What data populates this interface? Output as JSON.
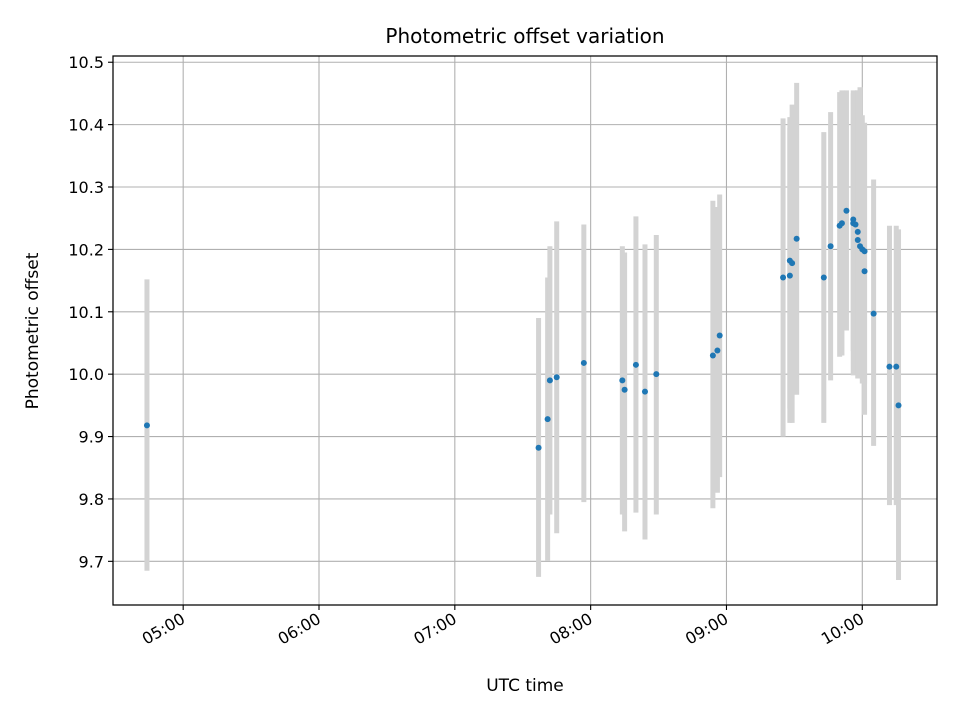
{
  "chart_data": {
    "type": "scatter",
    "title": "Photometric offset variation",
    "xlabel": "UTC time",
    "ylabel": "Photometric offset",
    "x_unit": "UTC time (HH:MM)",
    "x_ticks": [
      "05:00",
      "06:00",
      "07:00",
      "08:00",
      "09:00",
      "10:00"
    ],
    "y_ticks": [
      9.7,
      9.8,
      9.9,
      10.0,
      10.1,
      10.2,
      10.3,
      10.4,
      10.5
    ],
    "xlim": [
      "04:29",
      "10:33"
    ],
    "ylim": [
      9.63,
      10.51
    ],
    "grid": true,
    "colors": {
      "point": "#1f77b4",
      "errorbar": "#d3d3d3",
      "grid": "#b0b0b0"
    },
    "points": [
      {
        "x": "04:44",
        "y": 9.918,
        "ylo": 9.685,
        "yhi": 10.152
      },
      {
        "x": "07:37",
        "y": 9.882,
        "ylo": 9.675,
        "yhi": 10.09
      },
      {
        "x": "07:41",
        "y": 9.928,
        "ylo": 9.701,
        "yhi": 10.155
      },
      {
        "x": "07:42",
        "y": 9.99,
        "ylo": 9.775,
        "yhi": 10.205
      },
      {
        "x": "07:45",
        "y": 9.995,
        "ylo": 9.745,
        "yhi": 10.245
      },
      {
        "x": "07:57",
        "y": 10.018,
        "ylo": 9.795,
        "yhi": 10.24
      },
      {
        "x": "08:14",
        "y": 9.99,
        "ylo": 9.775,
        "yhi": 10.205
      },
      {
        "x": "08:15",
        "y": 9.975,
        "ylo": 9.748,
        "yhi": 10.195
      },
      {
        "x": "08:20",
        "y": 10.015,
        "ylo": 9.778,
        "yhi": 10.253
      },
      {
        "x": "08:24",
        "y": 9.972,
        "ylo": 9.735,
        "yhi": 10.208
      },
      {
        "x": "08:29",
        "y": 10.0,
        "ylo": 9.775,
        "yhi": 10.223
      },
      {
        "x": "08:54",
        "y": 10.03,
        "ylo": 9.785,
        "yhi": 10.278
      },
      {
        "x": "08:56",
        "y": 10.038,
        "ylo": 9.81,
        "yhi": 10.268
      },
      {
        "x": "08:57",
        "y": 10.062,
        "ylo": 9.835,
        "yhi": 10.288
      },
      {
        "x": "09:25",
        "y": 10.155,
        "ylo": 9.9,
        "yhi": 10.41
      },
      {
        "x": "09:28",
        "y": 10.182,
        "ylo": 9.945,
        "yhi": 10.412
      },
      {
        "x": "09:28",
        "y": 10.158,
        "ylo": 9.922,
        "yhi": 10.395
      },
      {
        "x": "09:29",
        "y": 10.178,
        "ylo": 9.922,
        "yhi": 10.432
      },
      {
        "x": "09:31",
        "y": 10.217,
        "ylo": 9.967,
        "yhi": 10.467
      },
      {
        "x": "09:43",
        "y": 10.155,
        "ylo": 9.922,
        "yhi": 10.388
      },
      {
        "x": "09:46",
        "y": 10.205,
        "ylo": 9.99,
        "yhi": 10.42
      },
      {
        "x": "09:50",
        "y": 10.238,
        "ylo": 10.028,
        "yhi": 10.452
      },
      {
        "x": "09:51",
        "y": 10.242,
        "ylo": 10.03,
        "yhi": 10.455
      },
      {
        "x": "09:53",
        "y": 10.262,
        "ylo": 10.07,
        "yhi": 10.455
      },
      {
        "x": "09:56",
        "y": 10.248,
        "ylo": 10.037,
        "yhi": 10.45
      },
      {
        "x": "09:56",
        "y": 10.242,
        "ylo": 9.998,
        "yhi": 10.455
      },
      {
        "x": "09:57",
        "y": 10.24,
        "ylo": 10.01,
        "yhi": 10.445
      },
      {
        "x": "09:58",
        "y": 10.228,
        "ylo": 10.0,
        "yhi": 10.455
      },
      {
        "x": "09:58",
        "y": 10.215,
        "ylo": 9.993,
        "yhi": 10.455
      },
      {
        "x": "09:59",
        "y": 10.205,
        "ylo": 9.993,
        "yhi": 10.46
      },
      {
        "x": "10:00",
        "y": 10.2,
        "ylo": 9.985,
        "yhi": 10.415
      },
      {
        "x": "10:01",
        "y": 10.165,
        "ylo": 9.935,
        "yhi": 10.4
      },
      {
        "x": "10:01",
        "y": 10.197,
        "ylo": 9.985,
        "yhi": 10.403
      },
      {
        "x": "10:05",
        "y": 10.097,
        "ylo": 9.885,
        "yhi": 10.312
      },
      {
        "x": "10:12",
        "y": 10.012,
        "ylo": 9.79,
        "yhi": 10.238
      },
      {
        "x": "10:15",
        "y": 10.012,
        "ylo": 9.79,
        "yhi": 10.238
      },
      {
        "x": "10:16",
        "y": 9.95,
        "ylo": 9.67,
        "yhi": 10.232
      }
    ]
  }
}
